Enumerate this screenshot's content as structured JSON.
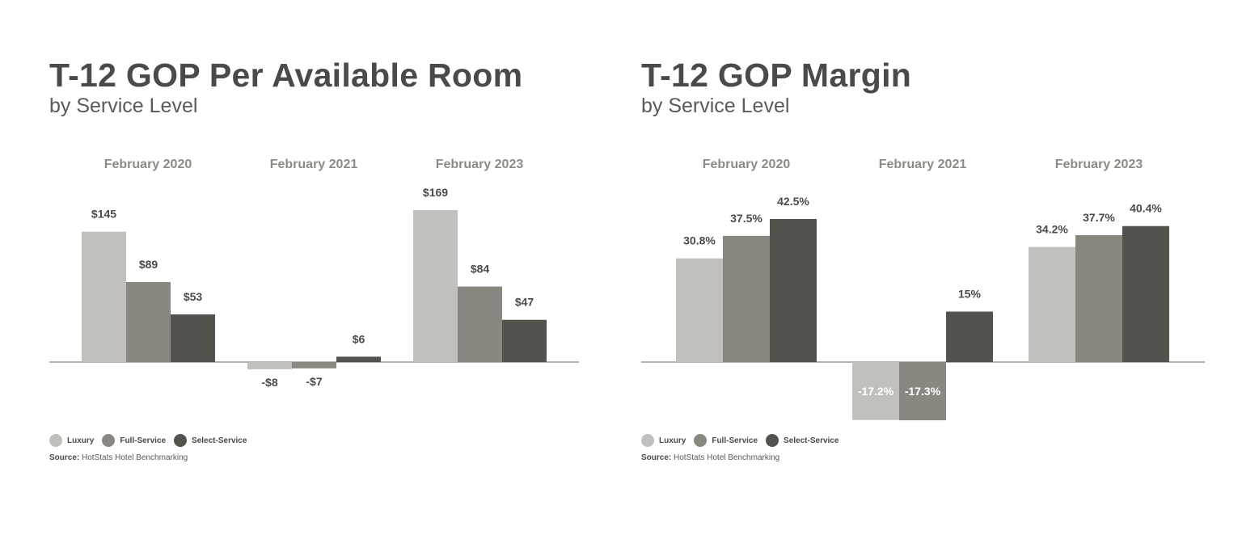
{
  "colors": {
    "luxury": "#c1c0bc",
    "full_service": "#8a8781",
    "select_service": "#53524d",
    "axis": "#b3b1ad"
  },
  "legend": {
    "items": [
      {
        "label": "Luxury",
        "color": "#c1c0bc"
      },
      {
        "label": "Full-Service",
        "color": "#8a8781"
      },
      {
        "label": "Select-Service",
        "color": "#53524d"
      }
    ]
  },
  "source": {
    "prefix": "Source:",
    "text": "HotStats Hotel Benchmarking"
  },
  "chart_data": [
    {
      "type": "bar",
      "title": "T-12 GOP Per Available Room",
      "subtitle": "by Service Level",
      "categories": [
        "February 2020",
        "February 2021",
        "February 2023"
      ],
      "series": [
        {
          "name": "Luxury",
          "values": [
            145,
            -8,
            169
          ],
          "labels": [
            "$145",
            "-$8",
            "$169"
          ]
        },
        {
          "name": "Full-Service",
          "values": [
            89,
            -7,
            84
          ],
          "labels": [
            "$89",
            "-$7",
            "$84"
          ]
        },
        {
          "name": "Select-Service",
          "values": [
            53,
            6,
            47
          ],
          "labels": [
            "$53",
            "$6",
            "$47"
          ]
        }
      ],
      "legend_position": "bottom-left",
      "grid": false
    },
    {
      "type": "bar",
      "title": "T-12 GOP Margin",
      "subtitle": "by Service Level",
      "categories": [
        "February 2020",
        "February 2021",
        "February 2023"
      ],
      "series": [
        {
          "name": "Luxury",
          "values": [
            30.8,
            -17.2,
            34.2
          ],
          "labels": [
            "30.8%",
            "-17.2%",
            "34.2%"
          ]
        },
        {
          "name": "Full-Service",
          "values": [
            37.5,
            -17.3,
            37.7
          ],
          "labels": [
            "37.5%",
            "-17.3%",
            "37.7%"
          ]
        },
        {
          "name": "Select-Service",
          "values": [
            42.5,
            15,
            40.4
          ],
          "labels": [
            "42.5%",
            "15%",
            "40.4%"
          ]
        }
      ],
      "legend_position": "bottom-left",
      "grid": false
    }
  ]
}
